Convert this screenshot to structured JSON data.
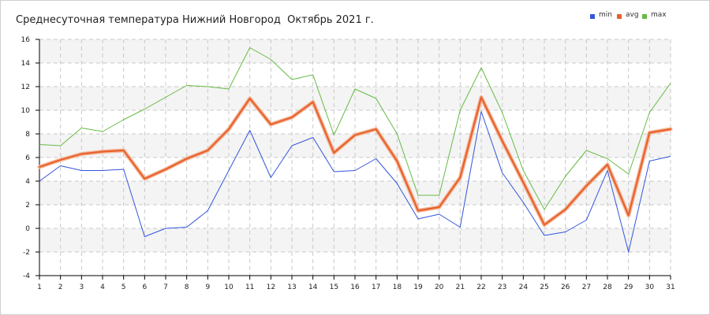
{
  "chart_data": {
    "type": "line",
    "title": "Среднесуточная температура Нижний Новгород  Октябрь 2021 г.",
    "xlabel": "",
    "ylabel": "",
    "x": [
      1,
      2,
      3,
      4,
      5,
      6,
      7,
      8,
      9,
      10,
      11,
      12,
      13,
      14,
      15,
      16,
      17,
      18,
      19,
      20,
      21,
      22,
      23,
      24,
      25,
      26,
      27,
      28,
      29,
      30,
      31
    ],
    "ylim": [
      -4,
      16
    ],
    "yticks": [
      -4,
      -2,
      0,
      2,
      4,
      6,
      8,
      10,
      12,
      14,
      16
    ],
    "grid": true,
    "legend_position": "top-right",
    "series": [
      {
        "name": "min",
        "color": "#3355dd",
        "values": [
          4.0,
          5.3,
          4.9,
          4.9,
          5.0,
          -0.7,
          0.0,
          0.1,
          1.5,
          4.9,
          8.3,
          4.3,
          7.0,
          7.7,
          4.8,
          4.9,
          5.9,
          3.8,
          0.8,
          1.2,
          0.1,
          9.9,
          4.7,
          2.2,
          -0.6,
          -0.3,
          0.7,
          4.9,
          -2.0,
          5.7,
          6.1
        ]
      },
      {
        "name": "avg",
        "color": "#e8612c",
        "values": [
          5.2,
          5.8,
          6.3,
          6.5,
          6.6,
          4.2,
          5.0,
          5.9,
          6.6,
          8.4,
          11.0,
          8.8,
          9.4,
          10.7,
          6.4,
          7.9,
          8.4,
          5.7,
          1.5,
          1.8,
          4.3,
          11.1,
          7.4,
          3.9,
          0.3,
          1.6,
          3.6,
          5.4,
          1.1,
          8.1,
          8.4
        ]
      },
      {
        "name": "max",
        "color": "#66bb44",
        "values": [
          7.1,
          7.0,
          8.5,
          8.2,
          9.2,
          10.1,
          11.1,
          12.1,
          12.0,
          11.8,
          15.3,
          14.3,
          12.6,
          13.0,
          7.9,
          11.8,
          11.0,
          8.0,
          2.8,
          2.8,
          10.0,
          13.6,
          9.8,
          4.9,
          1.6,
          4.4,
          6.6,
          5.9,
          4.6,
          9.8,
          12.3
        ]
      }
    ]
  }
}
